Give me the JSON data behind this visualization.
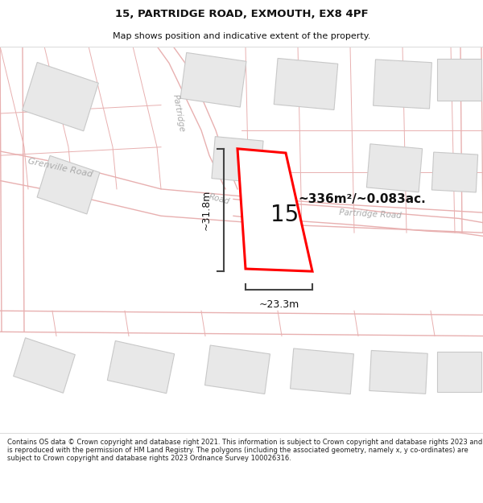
{
  "title_line1": "15, PARTRIDGE ROAD, EXMOUTH, EX8 4PF",
  "title_line2": "Map shows position and indicative extent of the property.",
  "footer_text": "Contains OS data © Crown copyright and database right 2021. This information is subject to Crown copyright and database rights 2023 and is reproduced with the permission of HM Land Registry. The polygons (including the associated geometry, namely x, y co-ordinates) are subject to Crown copyright and database rights 2023 Ordnance Survey 100026316.",
  "area_label": "~336m²/~0.083ac.",
  "house_number": "15",
  "dim_vertical": "~31.8m",
  "dim_horizontal": "~23.3m",
  "bg_color": "#f8f6f6",
  "road_line_color": "#e8b0b0",
  "plot_outline_color": "#ff0000",
  "building_fill": "#e8e8e8",
  "building_stroke": "#c8c8c8",
  "dim_line_color": "#444444",
  "road_label_color": "#aaaaaa",
  "title_color": "#111111",
  "footer_color": "#222222",
  "area_label_color": "#111111"
}
